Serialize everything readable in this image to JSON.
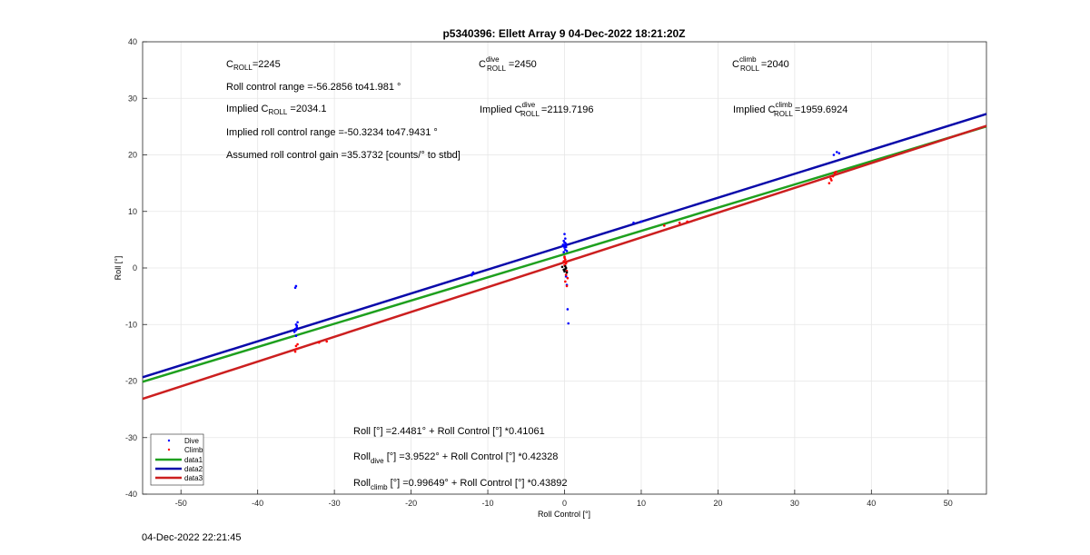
{
  "chart_data": {
    "type": "scatter",
    "title": "p5340396: Ellett Array 9 04-Dec-2022 18:21:20Z",
    "xlabel": "Roll Control [°]",
    "ylabel": "Roll [°]",
    "xlim": [
      -55,
      55
    ],
    "ylim": [
      -40,
      40
    ],
    "xticks": [
      -50,
      -40,
      -30,
      -20,
      -10,
      0,
      10,
      20,
      30,
      40,
      50
    ],
    "yticks": [
      -40,
      -30,
      -20,
      -10,
      0,
      10,
      20,
      30,
      40
    ],
    "grid": true,
    "legend_position": "bottom-left",
    "legend": [
      "Dive",
      "Climb",
      "data1",
      "data2",
      "data3"
    ],
    "colors": {
      "dive": "#0000ff",
      "climb": "#ff0000",
      "data1": "#1ea01e",
      "data2": "#0a0aaa",
      "data3": "#cc1f1f",
      "black_points": "#000000"
    },
    "series": [
      {
        "name": "Dive",
        "kind": "points",
        "points": [
          [
            -35.0,
            -3.2
          ],
          [
            -35.1,
            -3.5
          ],
          [
            -35.0,
            -10.0
          ],
          [
            -34.9,
            -10.5
          ],
          [
            -35.1,
            -10.8
          ],
          [
            -35.0,
            -11.0
          ],
          [
            -34.8,
            -9.6
          ],
          [
            -35.2,
            -11.3
          ],
          [
            -35.0,
            -12.0
          ],
          [
            -34.9,
            -10.2
          ],
          [
            -12.0,
            -1.0
          ],
          [
            -12.1,
            -1.3
          ],
          [
            -11.9,
            -0.8
          ],
          [
            0.0,
            6.0
          ],
          [
            0.1,
            5.2
          ],
          [
            -0.1,
            4.8
          ],
          [
            0.0,
            4.5
          ],
          [
            0.2,
            4.2
          ],
          [
            -0.2,
            3.9
          ],
          [
            0.0,
            3.6
          ],
          [
            0.1,
            3.2
          ],
          [
            0.3,
            3.0
          ],
          [
            -0.1,
            2.8
          ],
          [
            0.0,
            4.0
          ],
          [
            0.2,
            3.7
          ],
          [
            0.1,
            4.4
          ],
          [
            -0.2,
            4.1
          ],
          [
            0.3,
            -3.0
          ],
          [
            0.2,
            -1.5
          ],
          [
            0.4,
            -7.3
          ],
          [
            0.5,
            -9.8
          ],
          [
            9.0,
            8.0
          ],
          [
            10.0,
            8.2
          ],
          [
            35.1,
            20.0
          ],
          [
            35.5,
            20.5
          ],
          [
            35.8,
            20.3
          ]
        ]
      },
      {
        "name": "Climb",
        "kind": "points",
        "points": [
          [
            -35.0,
            -13.8
          ],
          [
            -34.9,
            -14.3
          ],
          [
            -35.1,
            -14.8
          ],
          [
            -34.8,
            -13.5
          ],
          [
            -32.0,
            -13.2
          ],
          [
            -31.0,
            -13.0
          ],
          [
            0.0,
            2.0
          ],
          [
            0.1,
            1.5
          ],
          [
            -0.1,
            1.2
          ],
          [
            0.2,
            0.8
          ],
          [
            0.0,
            0.5
          ],
          [
            0.3,
            -0.5
          ],
          [
            0.2,
            -1.2
          ],
          [
            0.4,
            -1.8
          ],
          [
            0.1,
            -2.4
          ],
          [
            0.3,
            -3.2
          ],
          [
            0.0,
            1.8
          ],
          [
            0.2,
            1.0
          ],
          [
            13.0,
            7.5
          ],
          [
            15.0,
            8.0
          ],
          [
            16.0,
            8.2
          ],
          [
            34.8,
            15.5
          ],
          [
            34.5,
            15.0
          ],
          [
            35.0,
            16.2
          ],
          [
            35.2,
            16.8
          ],
          [
            34.7,
            15.8
          ],
          [
            35.4,
            17.0
          ]
        ]
      },
      {
        "name": "",
        "kind": "points",
        "points": [
          [
            -0.3,
            0.2
          ],
          [
            0.1,
            -0.2
          ],
          [
            0.0,
            -0.6
          ],
          [
            0.2,
            0.0
          ],
          [
            -0.1,
            -0.3
          ],
          [
            0.3,
            -0.8
          ],
          [
            0.1,
            0.3
          ]
        ]
      },
      {
        "name": "data1",
        "kind": "line",
        "intercept": 2.4481,
        "slope": 0.41061
      },
      {
        "name": "data2",
        "kind": "line",
        "intercept": 3.9522,
        "slope": 0.42328
      },
      {
        "name": "data3",
        "kind": "line",
        "intercept": 0.99649,
        "slope": 0.43892
      }
    ],
    "annotations": {
      "c_roll_label": "C",
      "c_roll_sub": "ROLL",
      "c_roll_value": "=2245",
      "c_dive_label": "C",
      "c_dive_sup": "dive",
      "c_dive_sub": "ROLL",
      "c_dive_value": "=2450",
      "c_climb_label": "C",
      "c_climb_sup": "climb",
      "c_climb_sub": "ROLL",
      "c_climb_value": "=2040",
      "roll_range": "Roll control range =-56.2856 to41.981 °",
      "implied_prefix": "Implied C",
      "implied_sub": "ROLL",
      "implied_value": " =2034.1",
      "implied_dive_prefix": "Implied C",
      "implied_dive_sup": "dive",
      "implied_dive_sub": "ROLL",
      "implied_dive_value": "=2119.7196",
      "implied_climb_prefix": "Implied C",
      "implied_climb_sup": "climb",
      "implied_climb_sub": "ROLL",
      "implied_climb_value": "=1959.6924",
      "implied_range": "Implied roll control range =-50.3234 to47.9431 °",
      "gain": "Assumed roll control gain =35.3732 [counts/° to stbd]",
      "eq_all": "Roll [°] =2.4481° + Roll Control [°] *0.41061",
      "eq_dive_prefix": "Roll",
      "eq_dive_sub": "dive",
      "eq_dive_rest": " [°] =3.9522° + Roll Control [°] *0.42328",
      "eq_climb_prefix": "Roll",
      "eq_climb_sub": "climb",
      "eq_climb_rest": " [°] =0.99649° + Roll Control [°] *0.43892"
    }
  },
  "footer_timestamp": "04-Dec-2022 22:21:45"
}
